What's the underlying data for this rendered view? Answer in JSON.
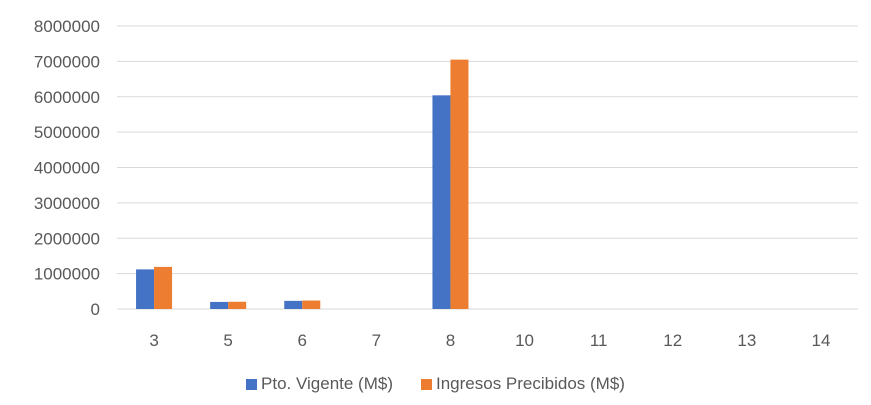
{
  "chart_data": {
    "type": "bar",
    "categories": [
      "3",
      "5",
      "6",
      "7",
      "8",
      "10",
      "11",
      "12",
      "13",
      "14"
    ],
    "series": [
      {
        "name": "Pto. Vigente (M$)",
        "color": "#4472C4",
        "values": [
          1120000,
          200000,
          230000,
          0,
          6040000,
          0,
          0,
          0,
          0,
          0
        ]
      },
      {
        "name": "Ingresos Precibidos (M$)",
        "color": "#ED7D31",
        "values": [
          1190000,
          205000,
          240000,
          0,
          7050000,
          0,
          0,
          0,
          0,
          0
        ]
      }
    ],
    "yticks": [
      "0",
      "1000000",
      "2000000",
      "3000000",
      "4000000",
      "5000000",
      "6000000",
      "7000000",
      "8000000"
    ],
    "ylim": [
      0,
      8000000
    ],
    "grid": true,
    "legend_position": "bottom"
  }
}
